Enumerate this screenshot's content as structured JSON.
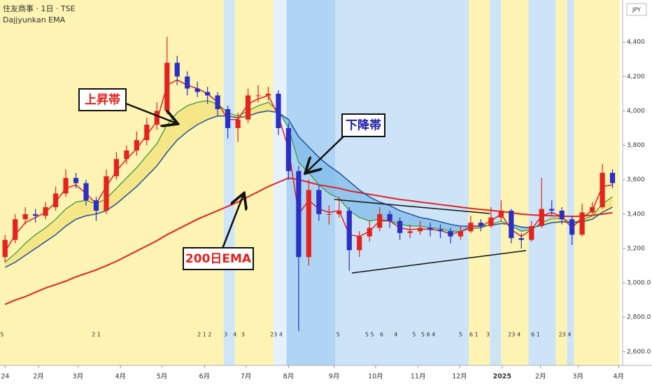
{
  "chart_data": {
    "type": "candlestick",
    "title": "住友商事 · 1日 · TSE",
    "subtitle": "Dajjyunkan EMA",
    "currency": "JPY",
    "annotations": [
      "上昇帯",
      "下降帯",
      "200日EMA"
    ],
    "xlim": [
      -0.5,
      61
    ],
    "ylim": [
      2520,
      4645
    ],
    "xticks": [
      {
        "value": 0,
        "label": "24"
      },
      {
        "value": 3.3,
        "label": "2月"
      },
      {
        "value": 7.2,
        "label": "3月"
      },
      {
        "value": 11.4,
        "label": "4月"
      },
      {
        "value": 15.5,
        "label": "5月"
      },
      {
        "value": 19.7,
        "label": "6月"
      },
      {
        "value": 23.8,
        "label": "7月"
      },
      {
        "value": 28.0,
        "label": "8月"
      },
      {
        "value": 32.5,
        "label": "9月"
      },
      {
        "value": 36.6,
        "label": "10月"
      },
      {
        "value": 40.8,
        "label": "11月"
      },
      {
        "value": 44.9,
        "label": "12月"
      },
      {
        "value": 49.1,
        "label": "2025"
      },
      {
        "value": 52.9,
        "label": "2月"
      },
      {
        "value": 56.6,
        "label": "3月"
      },
      {
        "value": 60.6,
        "label": "4月"
      }
    ],
    "yticks": [
      {
        "value": 4400,
        "label": "4,400"
      },
      {
        "value": 4200,
        "label": "4,200"
      },
      {
        "value": 4000,
        "label": "4,000"
      },
      {
        "value": 3800,
        "label": "3,800"
      },
      {
        "value": 3600,
        "label": "3,600"
      },
      {
        "value": 3400,
        "label": "3,400"
      },
      {
        "value": 3200,
        "label": "3,200"
      },
      {
        "value": 3000,
        "label": "3,000.0"
      },
      {
        "value": 2800,
        "label": "2,800.0"
      },
      {
        "value": 2600,
        "label": "2,600.0"
      }
    ],
    "up_color": "#e3231d",
    "down_color": "#2b2fc4",
    "candles": [
      [
        3150,
        3280,
        3120,
        3250
      ],
      [
        3250,
        3400,
        3230,
        3370
      ],
      [
        3370,
        3440,
        3340,
        3400
      ],
      [
        3400,
        3430,
        3350,
        3390
      ],
      [
        3390,
        3470,
        3370,
        3440
      ],
      [
        3440,
        3560,
        3420,
        3520
      ],
      [
        3520,
        3660,
        3500,
        3610
      ],
      [
        3610,
        3640,
        3550,
        3580
      ],
      [
        3580,
        3600,
        3450,
        3480
      ],
      [
        3480,
        3500,
        3360,
        3420
      ],
      [
        3420,
        3660,
        3400,
        3620
      ],
      [
        3620,
        3760,
        3600,
        3720
      ],
      [
        3720,
        3800,
        3690,
        3770
      ],
      [
        3770,
        3880,
        3740,
        3830
      ],
      [
        3830,
        3960,
        3800,
        3920
      ],
      [
        3920,
        4050,
        3890,
        4000
      ],
      [
        4000,
        4430,
        3980,
        4280
      ],
      [
        4280,
        4320,
        4150,
        4200
      ],
      [
        4200,
        4230,
        4090,
        4130
      ],
      [
        4130,
        4170,
        4080,
        4110
      ],
      [
        4110,
        4140,
        4040,
        4090
      ],
      [
        4090,
        4110,
        3970,
        4010
      ],
      [
        4010,
        4030,
        3840,
        3900
      ],
      [
        3900,
        3990,
        3820,
        3950
      ],
      [
        3950,
        4130,
        3930,
        4090
      ],
      [
        4090,
        4150,
        4050,
        4090
      ],
      [
        4090,
        4140,
        4060,
        4100
      ],
      [
        4100,
        4120,
        3860,
        3900
      ],
      [
        3900,
        3930,
        3600,
        3650
      ],
      [
        3650,
        3680,
        2720,
        3150
      ],
      [
        3150,
        3600,
        3100,
        3540
      ],
      [
        3540,
        3570,
        3360,
        3400
      ],
      [
        3400,
        3450,
        3340,
        3400
      ],
      [
        3400,
        3500,
        3380,
        3420
      ],
      [
        3420,
        3440,
        3070,
        3190
      ],
      [
        3190,
        3300,
        3150,
        3270
      ],
      [
        3270,
        3360,
        3240,
        3320
      ],
      [
        3320,
        3440,
        3300,
        3400
      ],
      [
        3400,
        3420,
        3320,
        3360
      ],
      [
        3360,
        3380,
        3250,
        3290
      ],
      [
        3290,
        3340,
        3260,
        3300
      ],
      [
        3300,
        3360,
        3280,
        3320
      ],
      [
        3320,
        3350,
        3270,
        3310
      ],
      [
        3310,
        3340,
        3260,
        3300
      ],
      [
        3300,
        3320,
        3230,
        3270
      ],
      [
        3270,
        3330,
        3250,
        3300
      ],
      [
        3300,
        3390,
        3290,
        3350
      ],
      [
        3350,
        3370,
        3300,
        3330
      ],
      [
        3330,
        3440,
        3320,
        3380
      ],
      [
        3380,
        3480,
        3360,
        3420
      ],
      [
        3420,
        3430,
        3230,
        3260
      ],
      [
        3260,
        3290,
        3200,
        3250
      ],
      [
        3250,
        3360,
        3240,
        3330
      ],
      [
        3330,
        3610,
        3320,
        3430
      ],
      [
        3430,
        3480,
        3390,
        3420
      ],
      [
        3420,
        3440,
        3340,
        3370
      ],
      [
        3370,
        3390,
        3220,
        3280
      ],
      [
        3280,
        3460,
        3270,
        3410
      ],
      [
        3410,
        3470,
        3400,
        3440
      ],
      [
        3440,
        3690,
        3430,
        3640
      ],
      [
        3640,
        3660,
        3550,
        3580
      ]
    ],
    "ema_fast": {
      "color": "#e01e1e",
      "values": [
        3180,
        3280,
        3350,
        3380,
        3410,
        3470,
        3550,
        3570,
        3520,
        3460,
        3560,
        3650,
        3720,
        3780,
        3860,
        3940,
        4150,
        4180,
        4150,
        4130,
        4100,
        4050,
        3950,
        3950,
        4040,
        4070,
        4090,
        3970,
        3780,
        3400,
        3480,
        3430,
        3410,
        3420,
        3280,
        3270,
        3300,
        3360,
        3360,
        3320,
        3310,
        3315,
        3310,
        3305,
        3285,
        3295,
        3330,
        3330,
        3360,
        3400,
        3310,
        3270,
        3310,
        3390,
        3410,
        3385,
        3320,
        3380,
        3420,
        3560,
        3570
      ]
    },
    "ema_mid": {
      "color": "#3f9a3f",
      "values": [
        3120,
        3170,
        3230,
        3280,
        3320,
        3370,
        3430,
        3470,
        3480,
        3460,
        3490,
        3550,
        3610,
        3670,
        3740,
        3810,
        3920,
        3990,
        4030,
        4050,
        4060,
        4040,
        3990,
        3970,
        4000,
        4030,
        4050,
        4000,
        3900,
        3700,
        3640,
        3570,
        3520,
        3490,
        3420,
        3380,
        3360,
        3370,
        3360,
        3340,
        3330,
        3330,
        3320,
        3315,
        3300,
        3300,
        3315,
        3320,
        3340,
        3360,
        3330,
        3300,
        3310,
        3350,
        3375,
        3375,
        3350,
        3365,
        3390,
        3460,
        3500
      ]
    },
    "ema_slow": {
      "color": "#22509c",
      "values": [
        3090,
        3120,
        3160,
        3200,
        3240,
        3280,
        3330,
        3370,
        3390,
        3400,
        3420,
        3460,
        3510,
        3560,
        3620,
        3680,
        3760,
        3830,
        3880,
        3920,
        3950,
        3970,
        3970,
        3960,
        3970,
        3990,
        4000,
        3990,
        3950,
        3850,
        3790,
        3730,
        3680,
        3640,
        3590,
        3540,
        3500,
        3470,
        3450,
        3420,
        3400,
        3380,
        3370,
        3355,
        3340,
        3330,
        3330,
        3330,
        3335,
        3345,
        3340,
        3325,
        3320,
        3335,
        3350,
        3355,
        3350,
        3355,
        3370,
        3410,
        3440
      ]
    },
    "ema_200": {
      "color": "#e02525",
      "values": [
        2875,
        2900,
        2920,
        2945,
        2970,
        2990,
        3010,
        3035,
        3055,
        3075,
        3100,
        3125,
        3155,
        3185,
        3215,
        3245,
        3280,
        3310,
        3340,
        3370,
        3395,
        3420,
        3445,
        3470,
        3500,
        3530,
        3560,
        3585,
        3610,
        3600,
        3585,
        3570,
        3560,
        3550,
        3535,
        3525,
        3515,
        3505,
        3495,
        3485,
        3478,
        3470,
        3463,
        3455,
        3448,
        3440,
        3433,
        3427,
        3421,
        3415,
        3408,
        3400,
        3395,
        3392,
        3390,
        3388,
        3386,
        3388,
        3393,
        3400,
        3408
      ]
    },
    "fill_up_color": "#f2e27a",
    "fill_down_color": "#7fbbea",
    "bands": [
      {
        "start": -0.5,
        "end": 21.6,
        "color": "#fdf3b2"
      },
      {
        "start": 21.6,
        "end": 22.7,
        "color": "#cfe6fa"
      },
      {
        "start": 22.7,
        "end": 26.5,
        "color": "#fdf3b2"
      },
      {
        "start": 26.5,
        "end": 27.8,
        "color": "#e6f1fb"
      },
      {
        "start": 27.8,
        "end": 32.6,
        "color": "#afd4f4"
      },
      {
        "start": 32.6,
        "end": 45.8,
        "color": "#cde4f8"
      },
      {
        "start": 45.8,
        "end": 47.9,
        "color": "#fdf3b2"
      },
      {
        "start": 47.9,
        "end": 49.0,
        "color": "#cde4f8"
      },
      {
        "start": 49.0,
        "end": 51.7,
        "color": "#fdf3b2"
      },
      {
        "start": 51.7,
        "end": 54.4,
        "color": "#cde4f8"
      },
      {
        "start": 54.4,
        "end": 55.5,
        "color": "#fdf3b2"
      },
      {
        "start": 55.5,
        "end": 56.2,
        "color": "#cde4f8"
      },
      {
        "start": 56.2,
        "end": 60.7,
        "color": "#fdf3b2"
      }
    ],
    "events": [
      {
        "x": -0.3,
        "text": "5"
      },
      {
        "x": 9.0,
        "text": "2 1"
      },
      {
        "x": 19.7,
        "text": "2 1 2"
      },
      {
        "x": 21.8,
        "text": "3"
      },
      {
        "x": 22.7,
        "text": "4"
      },
      {
        "x": 23.5,
        "text": "3"
      },
      {
        "x": 26.8,
        "text": "23 4"
      },
      {
        "x": 32.9,
        "text": "5"
      },
      {
        "x": 36.0,
        "text": "5 5"
      },
      {
        "x": 37.2,
        "text": "6"
      },
      {
        "x": 38.6,
        "text": "4"
      },
      {
        "x": 40.4,
        "text": "5"
      },
      {
        "x": 41.8,
        "text": "5 6 4"
      },
      {
        "x": 45.0,
        "text": "5"
      },
      {
        "x": 46.3,
        "text": "6 1"
      },
      {
        "x": 47.7,
        "text": "3"
      },
      {
        "x": 50.3,
        "text": "23 4"
      },
      {
        "x": 52.4,
        "text": "6 1"
      },
      {
        "x": 55.3,
        "text": "23 4"
      }
    ]
  }
}
